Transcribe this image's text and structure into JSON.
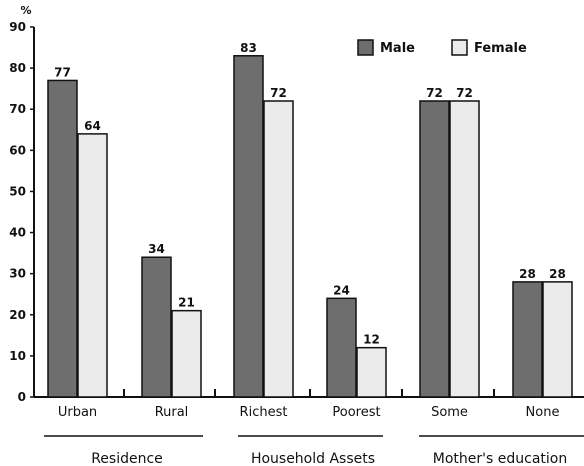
{
  "chart_data": {
    "type": "bar",
    "unit_label": "%",
    "ylim": [
      0,
      90
    ],
    "yticks": [
      0,
      10,
      20,
      30,
      40,
      50,
      60,
      70,
      80,
      90
    ],
    "categories": [
      "Urban",
      "Rural",
      "Richest",
      "Poorest",
      "Some",
      "None"
    ],
    "groups": [
      {
        "label": "Residence",
        "categories": [
          "Urban",
          "Rural"
        ]
      },
      {
        "label": "Household Assets",
        "categories": [
          "Richest",
          "Poorest"
        ]
      },
      {
        "label": "Mother's education",
        "categories": [
          "Some",
          "None"
        ]
      }
    ],
    "series": [
      {
        "name": "Male",
        "color": "#6e6e6e",
        "values": [
          77,
          34,
          83,
          24,
          72,
          28
        ]
      },
      {
        "name": "Female",
        "color": "#ebebeb",
        "values": [
          64,
          21,
          72,
          12,
          72,
          28
        ]
      }
    ],
    "legend_position": "top-right",
    "grid": false
  }
}
